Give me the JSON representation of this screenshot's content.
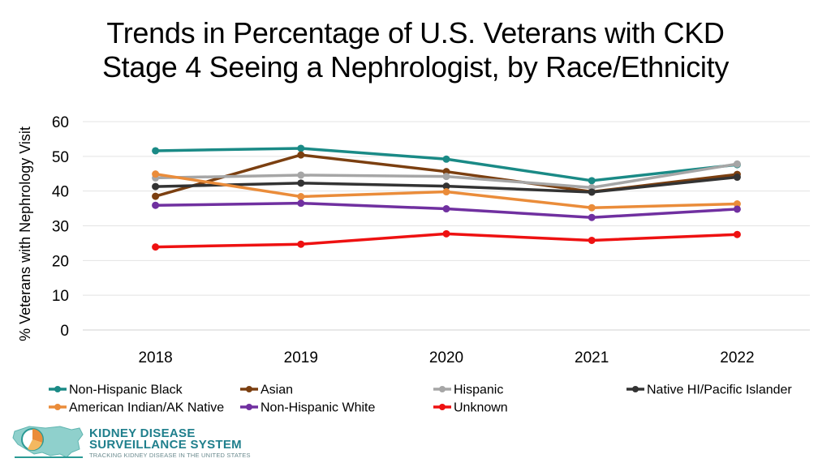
{
  "title": {
    "line1": "Trends in Percentage of U.S. Veterans with CKD",
    "line2": "Stage 4 Seeing a Nephrologist, by Race/Ethnicity"
  },
  "chart_data": {
    "type": "line",
    "title": "Trends in Percentage of U.S. Veterans with CKD Stage 4 Seeing a Nephrologist, by Race/Ethnicity",
    "xlabel": "",
    "ylabel": "% Veterans with Nephrology Visit",
    "categories": [
      "2018",
      "2019",
      "2020",
      "2021",
      "2022"
    ],
    "ylim": [
      0,
      60
    ],
    "yticks": [
      0,
      10,
      20,
      30,
      40,
      50,
      60
    ],
    "grid": true,
    "legend_position": "bottom",
    "series": [
      {
        "name": "Non-Hispanic Black",
        "color": "#1a8a86",
        "values": [
          51.6,
          52.3,
          49.2,
          43.0,
          47.6
        ]
      },
      {
        "name": "Asian",
        "color": "#7b3f10",
        "values": [
          38.5,
          50.4,
          45.6,
          39.8,
          44.8
        ]
      },
      {
        "name": "Hispanic",
        "color": "#a6a6a6",
        "values": [
          43.8,
          44.6,
          44.2,
          41.0,
          47.8
        ]
      },
      {
        "name": "Native HI/Pacific Islander",
        "color": "#333333",
        "values": [
          41.3,
          42.3,
          41.4,
          39.7,
          44.0
        ]
      },
      {
        "name": "American Indian/AK Native",
        "color": "#ea8c3a",
        "values": [
          44.9,
          38.4,
          39.8,
          35.2,
          36.3
        ]
      },
      {
        "name": "Non-Hispanic White",
        "color": "#7030a0",
        "values": [
          35.9,
          36.5,
          34.9,
          32.4,
          34.8
        ]
      },
      {
        "name": "Unknown",
        "color": "#ee1111",
        "values": [
          23.9,
          24.7,
          27.7,
          25.8,
          27.5
        ]
      }
    ]
  },
  "logo": {
    "line1": "KIDNEY DISEASE",
    "line2": "SURVEILLANCE SYSTEM",
    "line3": "TRACKING KIDNEY DISEASE IN THE UNITED STATES"
  }
}
